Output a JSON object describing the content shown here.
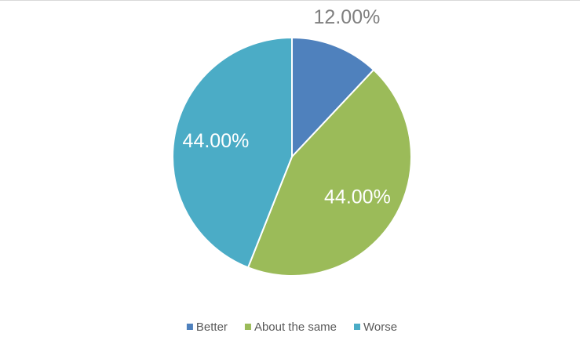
{
  "chart_data": {
    "type": "pie",
    "categories": [
      "Better",
      "About the same",
      "Worse"
    ],
    "values": [
      12,
      44,
      44
    ],
    "value_labels": [
      "12.00%",
      "44.00%",
      "44.00%"
    ],
    "colors": [
      "#4f81bd",
      "#9bbb59",
      "#4bacc6"
    ],
    "legend": "bottom"
  }
}
